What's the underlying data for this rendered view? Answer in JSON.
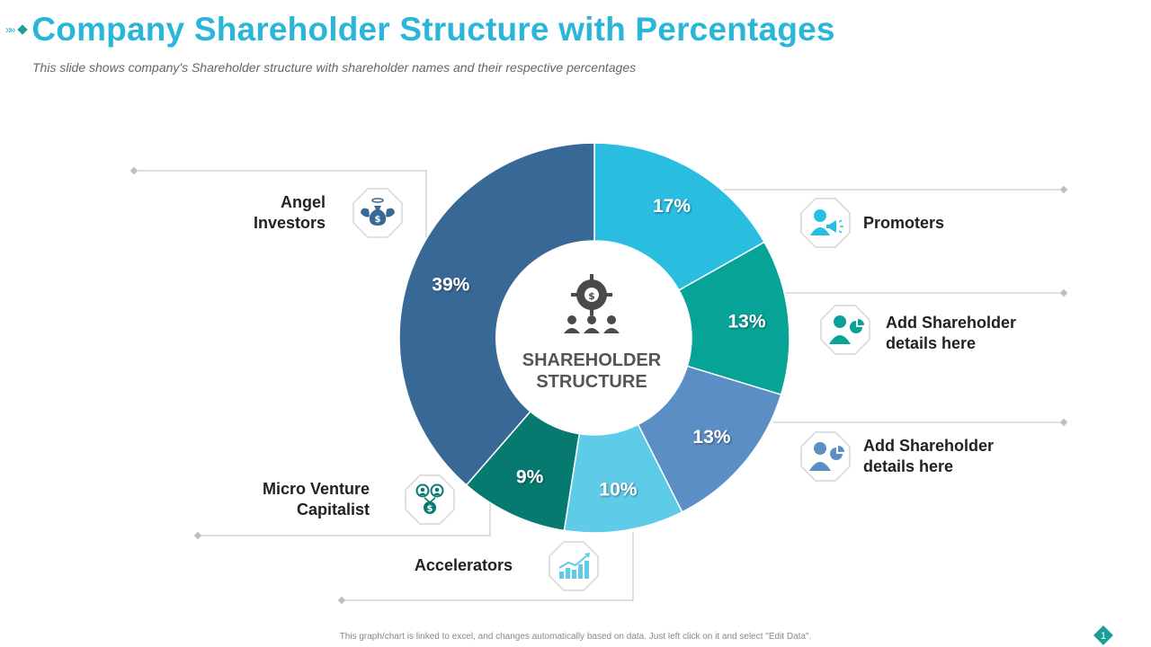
{
  "header": {
    "chevrons": "»»",
    "title": "Company Shareholder Structure with Percentages",
    "subtitle": "This slide shows company's Shareholder structure with shareholder names and their respective percentages"
  },
  "chart_data": {
    "type": "donut",
    "center_label": [
      "SHAREHOLDER",
      "STRUCTURE"
    ],
    "segments": [
      {
        "name": "Promoters",
        "value": 17,
        "label": "17%",
        "color": "#29bde0"
      },
      {
        "name": "Add Shareholder details here",
        "value": 13,
        "label": "13%",
        "color": "#06a396"
      },
      {
        "name": "Add Shareholder details here",
        "value": 13,
        "label": "13%",
        "color": "#5b8ec4"
      },
      {
        "name": "Accelerators",
        "value": 10,
        "label": "10%",
        "color": "#5ecbe8"
      },
      {
        "name": "Micro Venture Capitalist",
        "value": 9,
        "label": "9%",
        "color": "#077a70"
      },
      {
        "name": "Angel Investors",
        "value": 39,
        "label": "39%",
        "color": "#386996"
      }
    ]
  },
  "callouts": {
    "promoters": "Promoters",
    "shareholder1_l1": "Add Shareholder",
    "shareholder1_l2": "details here",
    "shareholder2_l1": "Add Shareholder",
    "shareholder2_l2": "details here",
    "accelerators": "Accelerators",
    "mvc_l1": "Micro Venture",
    "mvc_l2": "Capitalist",
    "angel_l1": "Angel",
    "angel_l2": "Investors"
  },
  "icons": {
    "promoters": "promoter-megaphone-icon",
    "shareholder1": "businessman-chart-icon",
    "shareholder2": "businessman-chart-icon",
    "accelerators": "growth-chart-icon",
    "mvc": "investors-dollar-icon",
    "angel": "angel-money-bag-icon",
    "center": "dollar-target-people-icon"
  },
  "footer": {
    "note": "This graph/chart is linked to excel, and changes automatically based on data. Just left click on it and select \"Edit Data\".",
    "page": "1"
  }
}
